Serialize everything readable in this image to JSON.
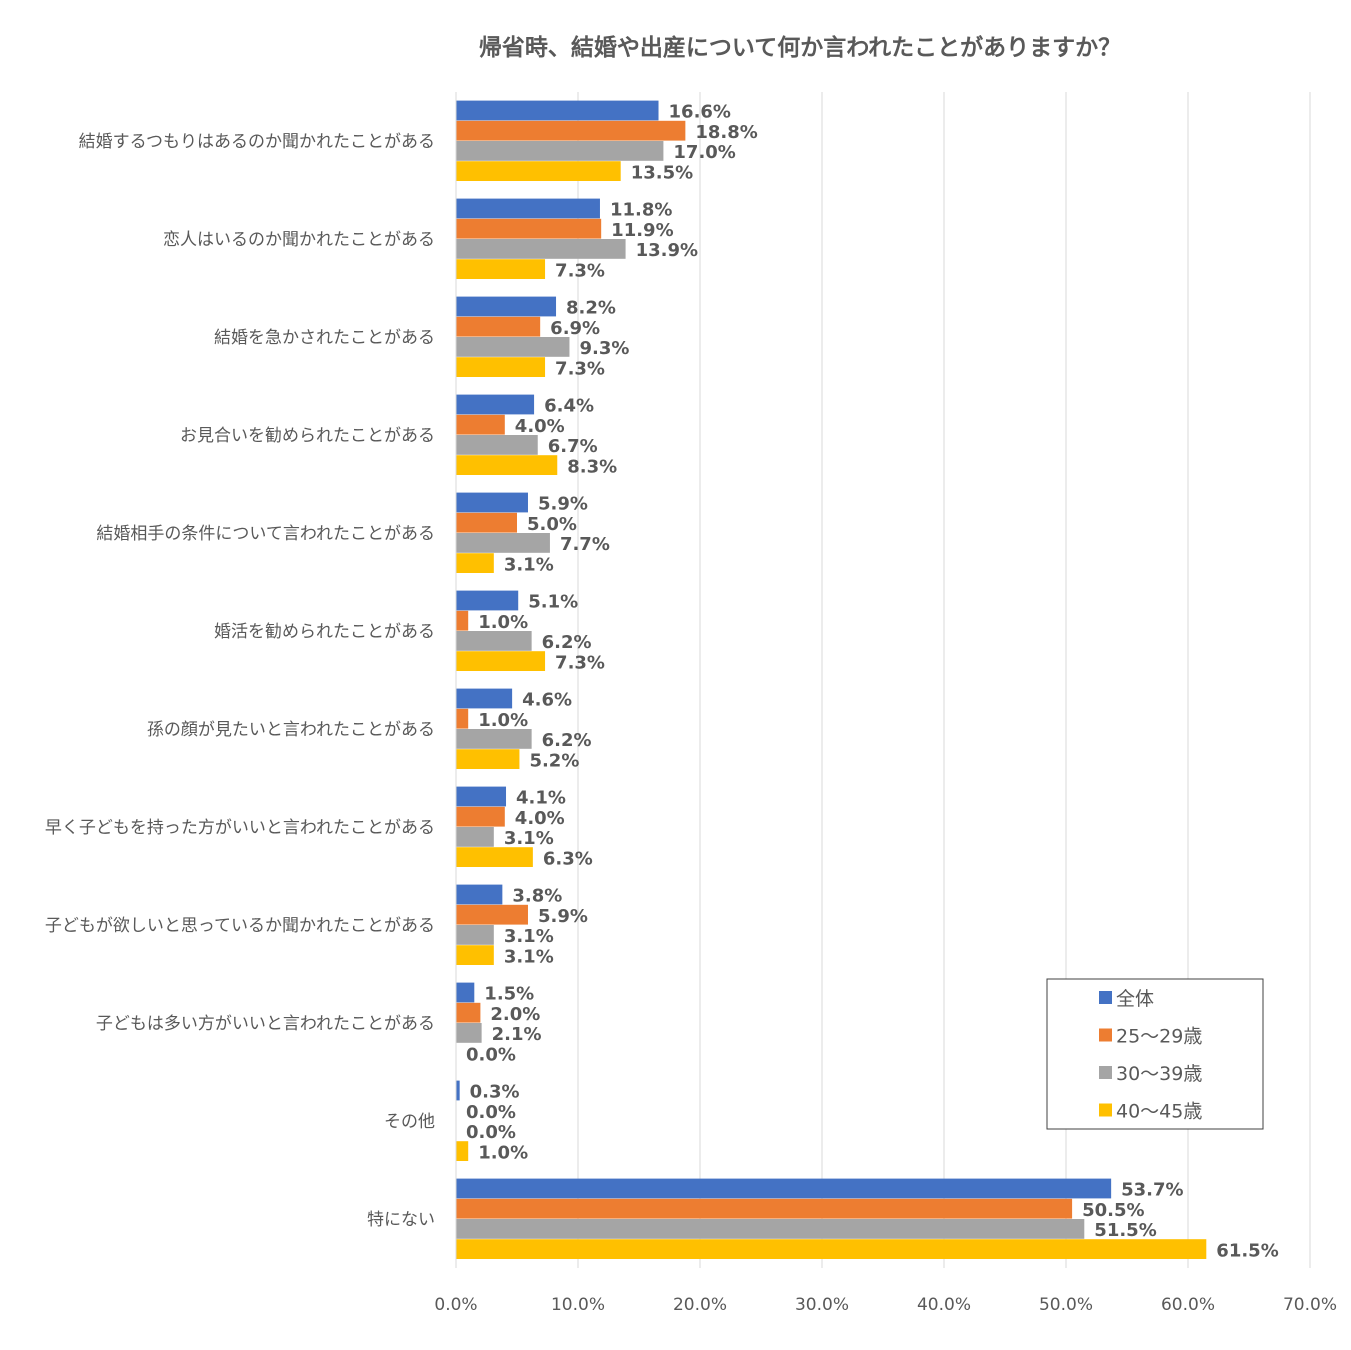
{
  "chart_data": {
    "type": "bar",
    "orientation": "horizontal",
    "title": "帰省時、結婚や出産について何か言われたことがありますか？",
    "categories": [
      "結婚するつもりはあるのか聞かれたことがある",
      "恋人はいるのか聞かれたことがある",
      "結婚を急かされたことがある",
      "お見合いを勧められたことがある",
      "結婚相手の条件について言われたことがある",
      "婚活を勧められたことがある",
      "孫の顔が見たいと言われたことがある",
      "早く子どもを持った方がいいと言われたことがある",
      "子どもが欲しいと思っているか聞かれたことがある",
      "子どもは多い方がいいと言われたことがある",
      "その他",
      "特にない"
    ],
    "series": [
      {
        "name": "全体",
        "color": "#4472C4",
        "values": [
          16.6,
          11.8,
          8.2,
          6.4,
          5.9,
          5.1,
          4.6,
          4.1,
          3.8,
          1.5,
          0.3,
          53.7
        ],
        "labels": [
          "16.6%",
          "11.8%",
          "8.2%",
          "6.4%",
          "5.9%",
          "5.1%",
          "4.6%",
          "4.1%",
          "3.8%",
          "1.5%",
          "0.3%",
          "53.7%"
        ]
      },
      {
        "name": "25～29歳",
        "color": "#ED7D31",
        "values": [
          18.8,
          11.9,
          6.9,
          4.0,
          5.0,
          1.0,
          1.0,
          4.0,
          5.9,
          2.0,
          0.0,
          50.5
        ],
        "labels": [
          "18.8%",
          "11.9%",
          "6.9%",
          "4.0%",
          "5.0%",
          "1.0%",
          "1.0%",
          "4.0%",
          "5.9%",
          "2.0%",
          "0.0%",
          "50.5%"
        ]
      },
      {
        "name": "30～39歳",
        "color": "#A5A5A5",
        "values": [
          17.0,
          13.9,
          9.3,
          6.7,
          7.7,
          6.2,
          6.2,
          3.1,
          3.1,
          2.1,
          0.0,
          51.5
        ],
        "labels": [
          "17.0%",
          "13.9%",
          "9.3%",
          "6.7%",
          "7.7%",
          "6.2%",
          "6.2%",
          "3.1%",
          "3.1%",
          "2.1%",
          "0.0%",
          "51.5%"
        ]
      },
      {
        "name": "40～45歳",
        "color": "#FFC000",
        "values": [
          13.5,
          7.3,
          7.3,
          8.3,
          3.1,
          7.3,
          5.2,
          6.3,
          3.1,
          0.0,
          1.0,
          61.5
        ],
        "labels": [
          "13.5%",
          "7.3%",
          "7.3%",
          "8.3%",
          "3.1%",
          "7.3%",
          "5.2%",
          "6.3%",
          "3.1%",
          "0.0%",
          "1.0%",
          "61.5%"
        ]
      }
    ],
    "xlim": [
      0,
      70
    ],
    "x_ticks": [
      0,
      10,
      20,
      30,
      40,
      50,
      60,
      70
    ],
    "x_tick_labels": [
      "0.0%",
      "10.0%",
      "20.0%",
      "30.0%",
      "40.0%",
      "50.0%",
      "60.0%",
      "70.0%"
    ],
    "xlabel": "",
    "ylabel": "",
    "grid": "vertical",
    "legend": "bottom-right"
  }
}
